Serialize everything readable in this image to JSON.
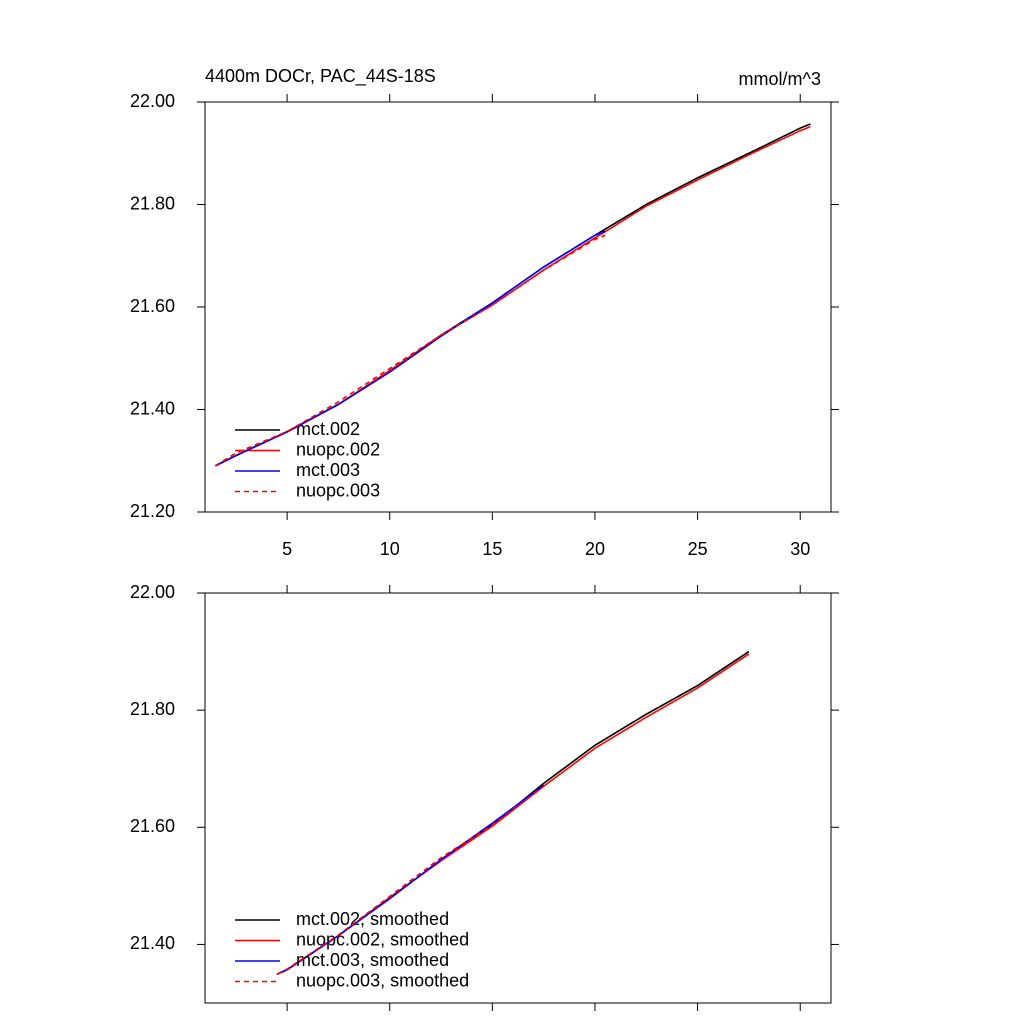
{
  "chart_data": [
    {
      "type": "line",
      "title": "4400m DOCr, PAC_44S-18S",
      "units": "mmol/m^3",
      "x": [
        1.5,
        2.5,
        5,
        7.5,
        10,
        12.5,
        15,
        17.5,
        20,
        20.5,
        22.5,
        25,
        27.5,
        30,
        30.5
      ],
      "series": [
        {
          "name": "mct.002",
          "color": "#000000",
          "linestyle": "solid",
          "values": [
            21.29,
            21.31,
            21.357,
            21.41,
            21.475,
            21.545,
            21.608,
            21.678,
            21.74,
            21.752,
            21.8,
            21.852,
            21.9,
            21.949,
            21.957
          ]
        },
        {
          "name": "nuopc.002",
          "color": "#ff0000",
          "linestyle": "solid",
          "values": [
            21.29,
            21.31,
            21.357,
            21.41,
            21.476,
            21.545,
            21.604,
            21.672,
            21.735,
            21.747,
            21.797,
            21.848,
            21.897,
            21.944,
            21.952
          ]
        },
        {
          "name": "mct.003",
          "color": "#0000ff",
          "linestyle": "solid",
          "values": [
            21.29,
            21.31,
            21.356,
            21.41,
            21.473,
            21.543,
            21.608,
            21.678,
            21.74,
            21.748,
            null,
            null,
            null,
            null,
            null
          ]
        },
        {
          "name": "nuopc.003",
          "color": "#ff0000",
          "linestyle": "dashed",
          "values": [
            21.29,
            21.315,
            21.357,
            21.415,
            21.48,
            21.545,
            21.604,
            21.672,
            21.732,
            21.74,
            null,
            null,
            null,
            null,
            null
          ]
        }
      ],
      "xlim": [
        1,
        31.5
      ],
      "xticks": [
        5,
        10,
        15,
        20,
        25,
        30
      ],
      "ylim": [
        21.2,
        22.0
      ],
      "yticks": [
        {
          "value": 21.2,
          "label": "21.20"
        },
        {
          "value": 21.4,
          "label": "21.40"
        },
        {
          "value": 21.6,
          "label": "21.60"
        },
        {
          "value": 21.8,
          "label": "21.80"
        },
        {
          "value": 22.0,
          "label": "22.00"
        }
      ],
      "legend": "lower left"
    },
    {
      "type": "line",
      "x": [
        4.5,
        5,
        7.5,
        10,
        12.5,
        15,
        17.5,
        20,
        22.5,
        25,
        27.5
      ],
      "series": [
        {
          "name": "mct.002, smoothed",
          "color": "#000000",
          "linestyle": "solid",
          "values": [
            21.349,
            21.357,
            21.415,
            21.48,
            21.543,
            21.604,
            21.675,
            21.74,
            21.793,
            21.842,
            21.9
          ]
        },
        {
          "name": "nuopc.002, smoothed",
          "color": "#ff0000",
          "linestyle": "solid",
          "values": [
            21.349,
            21.357,
            21.415,
            21.48,
            21.543,
            21.602,
            21.67,
            21.735,
            21.788,
            21.838,
            21.896
          ]
        },
        {
          "name": "mct.003, smoothed",
          "color": "#0000ff",
          "linestyle": "solid",
          "values": [
            21.349,
            21.357,
            21.415,
            21.478,
            21.545,
            21.607,
            21.672,
            null,
            null,
            null,
            null
          ]
        },
        {
          "name": "nuopc.003, smoothed",
          "color": "#ff0000",
          "linestyle": "dashed",
          "values": [
            21.349,
            21.358,
            21.416,
            21.482,
            21.548,
            21.604,
            21.67,
            null,
            null,
            null,
            null
          ]
        }
      ],
      "xlim": [
        1,
        31.5
      ],
      "ylim": [
        21.3,
        22.0
      ],
      "yticks": [
        {
          "value": 21.4,
          "label": "21.40"
        },
        {
          "value": 21.6,
          "label": "21.60"
        },
        {
          "value": 21.8,
          "label": "21.80"
        },
        {
          "value": 22.0,
          "label": "22.00"
        }
      ],
      "legend": "lower left"
    }
  ]
}
